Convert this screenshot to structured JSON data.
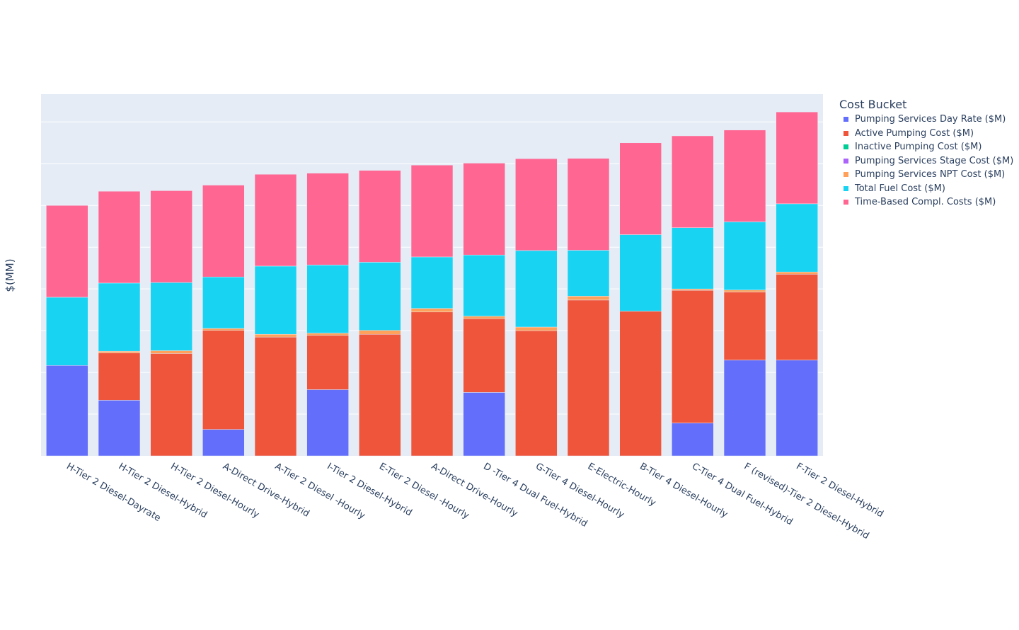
{
  "chart_data": {
    "type": "bar",
    "barmode": "stack",
    "title": "",
    "xlabel": "",
    "ylabel": "$(MM)",
    "ylim": [
      0,
      13
    ],
    "grid": true,
    "legend_title": "Cost Bucket",
    "legend_position": "top-right",
    "categories": [
      "H-Tier 2 Diesel-Dayrate",
      "H-Tier 2 Diesel-Hybrid",
      "H-Tier 2 Diesel-Hourly",
      "A-Direct Drive-Hybrid",
      "A-Tier 2 Diesel -Hourly",
      "I-Tier 2 Diesel-Hybrid",
      "E-Tier 2 Diesel -Hourly",
      "A-Direct Drive-Hourly",
      "D -Tier 4 Dual Fuel-Hybrid",
      "G-Tier 4 Diesel-Hourly",
      "E-Electric-Hourly",
      "B-Tier 4 Diesel-Hourly",
      "C-Tier 4 Dual Fuel-Hybrid",
      "F (revised)-Tier 2 Diesel-Hybrid",
      "F-Tier 2 Diesel-Hybrid"
    ],
    "series": [
      {
        "name": "Pumping Services Day Rate ($M)",
        "color": "#636efa",
        "values": [
          3.25,
          2.0,
          0,
          0.95,
          0,
          2.38,
          0,
          0,
          2.28,
          0,
          0,
          0,
          1.18,
          3.44,
          3.44
        ]
      },
      {
        "name": "Active Pumping Cost ($M)",
        "color": "#ef553b",
        "values": [
          0,
          1.7,
          3.68,
          3.56,
          4.27,
          1.95,
          4.37,
          5.17,
          2.65,
          4.5,
          5.6,
          5.2,
          4.77,
          2.45,
          3.09
        ]
      },
      {
        "name": "Inactive Pumping Cost ($M)",
        "color": "#00cc96",
        "values": [
          0,
          0,
          0,
          0,
          0,
          0,
          0,
          0,
          0,
          0,
          0,
          0,
          0,
          0,
          0
        ]
      },
      {
        "name": "Pumping Services Stage Cost ($M)",
        "color": "#ab63fa",
        "values": [
          0,
          0,
          0,
          0,
          0,
          0,
          0,
          0,
          0,
          0,
          0,
          0,
          0,
          0,
          0
        ]
      },
      {
        "name": "Pumping Services NPT Cost ($M)",
        "color": "#ffa15a",
        "values": [
          0,
          0.06,
          0.1,
          0.07,
          0.1,
          0.08,
          0.14,
          0.13,
          0.09,
          0.13,
          0.14,
          0,
          0.05,
          0.07,
          0.08
        ]
      },
      {
        "name": "Total Fuel Cost ($M)",
        "color": "#19d3f3",
        "values": [
          2.45,
          2.45,
          2.45,
          1.85,
          2.45,
          2.45,
          2.45,
          1.85,
          2.2,
          2.75,
          1.65,
          2.75,
          2.2,
          2.45,
          2.45
        ]
      },
      {
        "name": "Time-Based Compl. Costs ($M)",
        "color": "#ff6692",
        "values": [
          3.3,
          3.3,
          3.3,
          3.3,
          3.3,
          3.3,
          3.3,
          3.3,
          3.3,
          3.3,
          3.3,
          3.3,
          3.3,
          3.3,
          3.3
        ]
      }
    ]
  }
}
